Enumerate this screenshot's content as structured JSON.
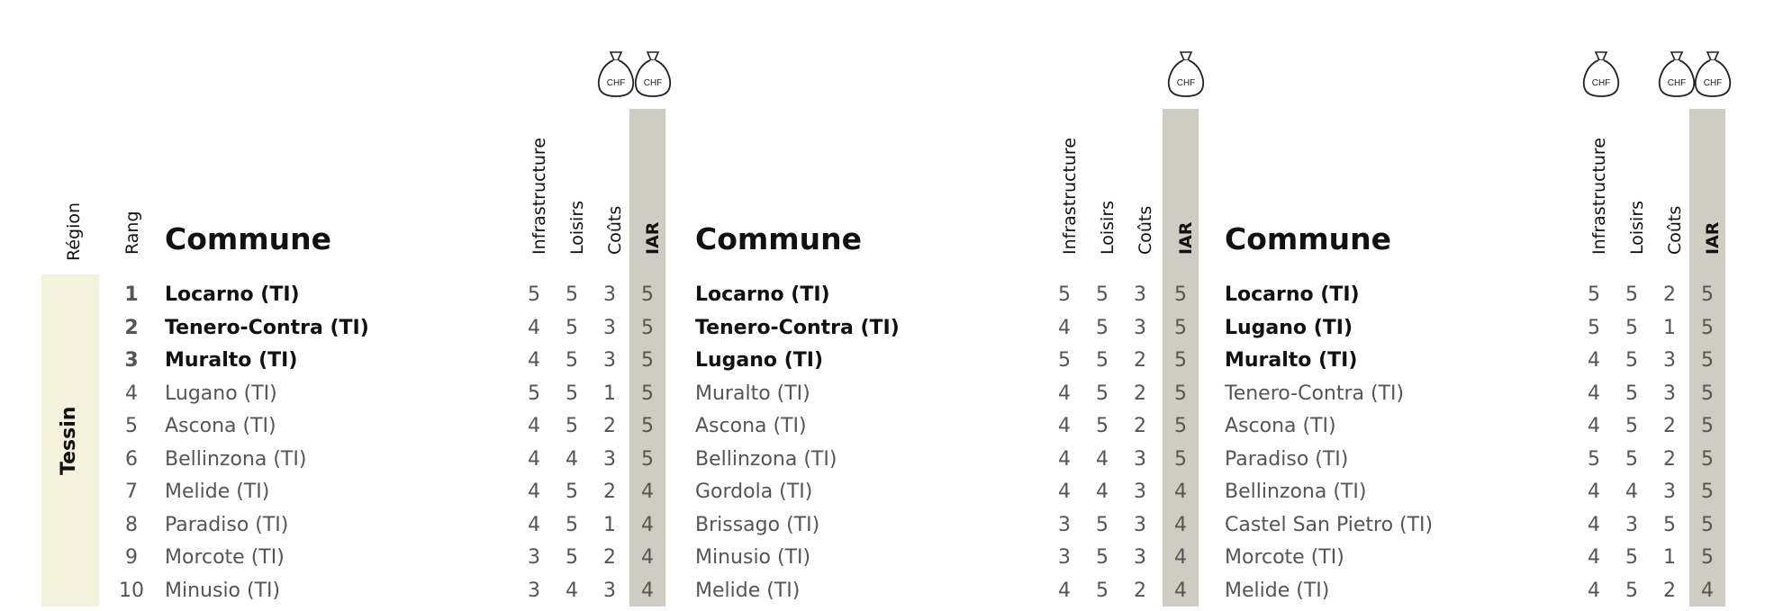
{
  "headers": {
    "region": "Région",
    "rang": "Rang",
    "commune": "Commune",
    "infrastructure": "Infrastructure",
    "loisirs": "Loisirs",
    "couts": "Coûts",
    "iar": "IAR",
    "chf_icon_text": "CHF"
  },
  "region": "Tessin",
  "ranks": [
    "1",
    "2",
    "3",
    "4",
    "5",
    "6",
    "7",
    "8",
    "9",
    "10"
  ],
  "tables": [
    {
      "chf_icons": 2,
      "rows": [
        {
          "commune": "Locarno (TI)",
          "infrastructure": "5",
          "loisirs": "5",
          "couts": "3",
          "iar": "5",
          "bold": true
        },
        {
          "commune": "Tenero-Contra (TI)",
          "infrastructure": "4",
          "loisirs": "5",
          "couts": "3",
          "iar": "5",
          "bold": true
        },
        {
          "commune": "Muralto (TI)",
          "infrastructure": "4",
          "loisirs": "5",
          "couts": "3",
          "iar": "5",
          "bold": true
        },
        {
          "commune": "Lugano (TI)",
          "infrastructure": "5",
          "loisirs": "5",
          "couts": "1",
          "iar": "5",
          "bold": false
        },
        {
          "commune": "Ascona (TI)",
          "infrastructure": "4",
          "loisirs": "5",
          "couts": "2",
          "iar": "5",
          "bold": false
        },
        {
          "commune": "Bellinzona (TI)",
          "infrastructure": "4",
          "loisirs": "4",
          "couts": "3",
          "iar": "5",
          "bold": false
        },
        {
          "commune": "Melide (TI)",
          "infrastructure": "4",
          "loisirs": "5",
          "couts": "2",
          "iar": "4",
          "bold": false
        },
        {
          "commune": "Paradiso (TI)",
          "infrastructure": "4",
          "loisirs": "5",
          "couts": "1",
          "iar": "4",
          "bold": false
        },
        {
          "commune": "Morcote (TI)",
          "infrastructure": "3",
          "loisirs": "5",
          "couts": "2",
          "iar": "4",
          "bold": false
        },
        {
          "commune": "Minusio (TI)",
          "infrastructure": "3",
          "loisirs": "4",
          "couts": "3",
          "iar": "4",
          "bold": false
        }
      ]
    },
    {
      "chf_icons": 1,
      "rows": [
        {
          "commune": "Locarno (TI)",
          "infrastructure": "5",
          "loisirs": "5",
          "couts": "3",
          "iar": "5",
          "bold": true
        },
        {
          "commune": "Tenero-Contra (TI)",
          "infrastructure": "4",
          "loisirs": "5",
          "couts": "3",
          "iar": "5",
          "bold": true
        },
        {
          "commune": "Lugano (TI)",
          "infrastructure": "5",
          "loisirs": "5",
          "couts": "2",
          "iar": "5",
          "bold": true
        },
        {
          "commune": "Muralto (TI)",
          "infrastructure": "4",
          "loisirs": "5",
          "couts": "2",
          "iar": "5",
          "bold": false
        },
        {
          "commune": "Ascona (TI)",
          "infrastructure": "4",
          "loisirs": "5",
          "couts": "2",
          "iar": "5",
          "bold": false
        },
        {
          "commune": "Bellinzona (TI)",
          "infrastructure": "4",
          "loisirs": "4",
          "couts": "3",
          "iar": "5",
          "bold": false
        },
        {
          "commune": "Gordola (TI)",
          "infrastructure": "4",
          "loisirs": "4",
          "couts": "3",
          "iar": "4",
          "bold": false
        },
        {
          "commune": "Brissago (TI)",
          "infrastructure": "3",
          "loisirs": "5",
          "couts": "3",
          "iar": "4",
          "bold": false
        },
        {
          "commune": "Minusio (TI)",
          "infrastructure": "3",
          "loisirs": "5",
          "couts": "3",
          "iar": "4",
          "bold": false
        },
        {
          "commune": "Melide (TI)",
          "infrastructure": "4",
          "loisirs": "5",
          "couts": "2",
          "iar": "4",
          "bold": false
        }
      ]
    },
    {
      "chf_icons": 3,
      "rows": [
        {
          "commune": "Locarno (TI)",
          "infrastructure": "5",
          "loisirs": "5",
          "couts": "2",
          "iar": "5",
          "bold": true
        },
        {
          "commune": "Lugano (TI)",
          "infrastructure": "5",
          "loisirs": "5",
          "couts": "1",
          "iar": "5",
          "bold": true
        },
        {
          "commune": "Muralto (TI)",
          "infrastructure": "4",
          "loisirs": "5",
          "couts": "3",
          "iar": "5",
          "bold": true
        },
        {
          "commune": "Tenero-Contra (TI)",
          "infrastructure": "4",
          "loisirs": "5",
          "couts": "3",
          "iar": "5",
          "bold": false
        },
        {
          "commune": "Ascona (TI)",
          "infrastructure": "4",
          "loisirs": "5",
          "couts": "2",
          "iar": "5",
          "bold": false
        },
        {
          "commune": "Paradiso (TI)",
          "infrastructure": "5",
          "loisirs": "5",
          "couts": "2",
          "iar": "5",
          "bold": false
        },
        {
          "commune": "Bellinzona (TI)",
          "infrastructure": "4",
          "loisirs": "4",
          "couts": "3",
          "iar": "5",
          "bold": false
        },
        {
          "commune": "Castel San Pietro (TI)",
          "infrastructure": "4",
          "loisirs": "3",
          "couts": "5",
          "iar": "5",
          "bold": false
        },
        {
          "commune": "Morcote (TI)",
          "infrastructure": "4",
          "loisirs": "5",
          "couts": "1",
          "iar": "5",
          "bold": false
        },
        {
          "commune": "Melide (TI)",
          "infrastructure": "4",
          "loisirs": "5",
          "couts": "2",
          "iar": "4",
          "bold": false
        }
      ]
    }
  ]
}
